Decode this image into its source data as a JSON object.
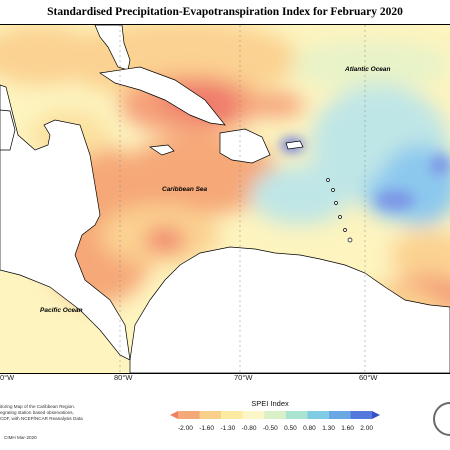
{
  "title": "Standardised Precipitation-Evapotranspiration Index for February 2020",
  "map_labels": {
    "atlantic": "Atlantic Ocean",
    "caribbean": "Caribbean Sea",
    "pacific": "Pacific Ocean"
  },
  "longitude_labels": [
    "0°W",
    "80°W",
    "70°W",
    "60°W"
  ],
  "credits": [
    "itoring Map of the Caribbean Region.",
    "egrating station based observations,",
    "CDF, with NCEP/NCAR Reanalysis Data"
  ],
  "copyright": "CIMH Mar-2020",
  "legend": {
    "title": "SPEI Index",
    "labels": [
      "-2.00",
      "-1.60",
      "-1.30",
      "-0.80",
      "-0.50",
      "0.50",
      "0.80",
      "1.30",
      "1.60",
      "2.00"
    ],
    "colors": [
      "#f08060",
      "#f4a878",
      "#f8d08a",
      "#fbeaa0",
      "#fbf6c6",
      "#d9f0c8",
      "#a8e4d0",
      "#80cce4",
      "#6aa8e4",
      "#5478dc",
      "#3a4ec4"
    ]
  },
  "colors": {
    "dry_strong": "#f08068",
    "dry": "#f6a878",
    "dry_mild": "#fbd291",
    "near_normal": "#fdf2b8",
    "wet_mild": "#bfe6e6",
    "wet": "#8cc8ee",
    "wet_strong": "#5b6ee0",
    "land": "#ffffff"
  }
}
